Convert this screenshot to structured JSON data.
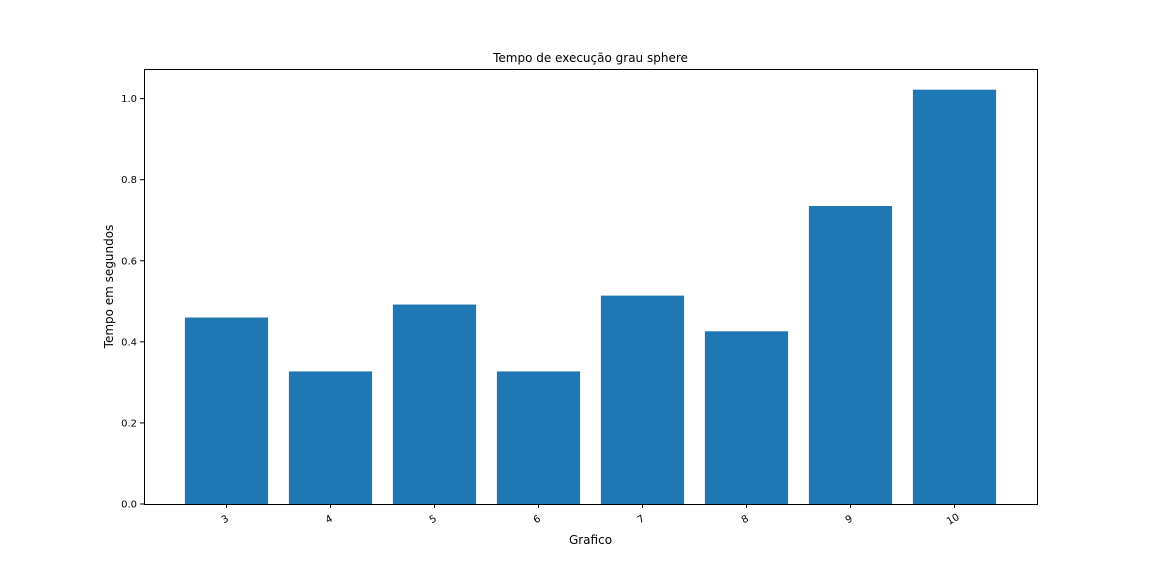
{
  "chart_data": {
    "type": "bar",
    "title": "Tempo de execução grau sphere",
    "xlabel": "Grafico",
    "ylabel": "Tempo em segundos",
    "categories": [
      "3",
      "4",
      "5",
      "6",
      "7",
      "8",
      "9",
      "10"
    ],
    "values": [
      0.46,
      0.327,
      0.492,
      0.327,
      0.514,
      0.426,
      0.735,
      1.022
    ],
    "ylim": [
      0,
      1.073
    ],
    "yticks": [
      "0.0",
      "0.2",
      "0.4",
      "0.6",
      "0.8",
      "1.0"
    ],
    "bar_color": "#1f77b4",
    "grid": false,
    "x_tick_rotation": "30 degrees"
  }
}
